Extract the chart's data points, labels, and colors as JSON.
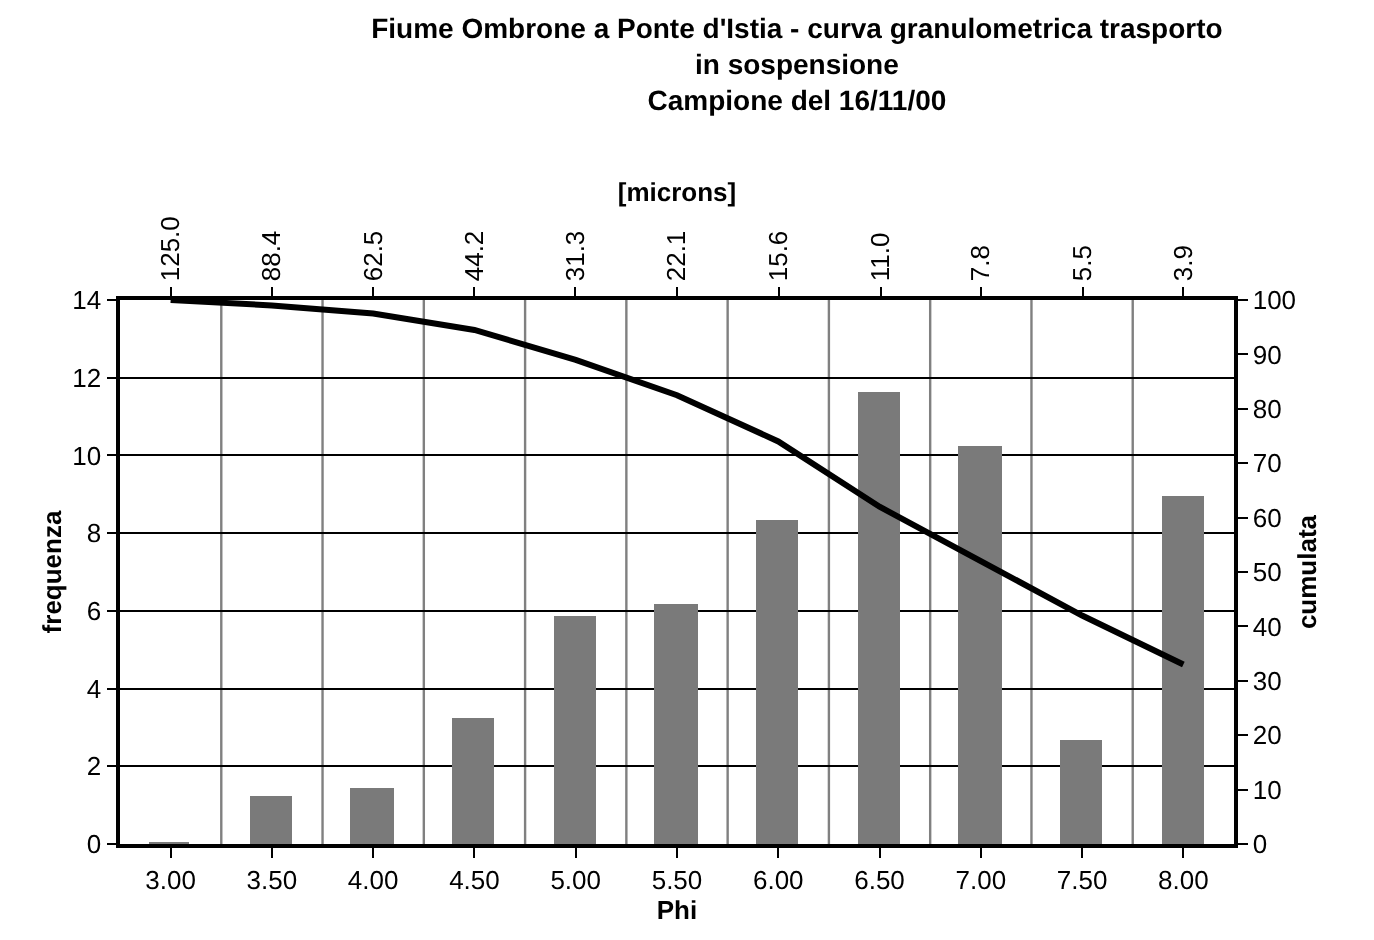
{
  "chart_data": {
    "type": "bar",
    "title": "Fiume Ombrone a Ponte d'Istia - curva granulometrica trasporto\nin sospensione\nCampione del 16/11/00",
    "xlabel": "Phi",
    "ylabel": "frequenza",
    "y2label": "cumulata",
    "x2label": "[microns]",
    "x": [
      3,
      3.5,
      4,
      4.5,
      5,
      5.5,
      6,
      6.5,
      7,
      7.5,
      8
    ],
    "series": [
      {
        "color": "#7a7a7a",
        "values": [
          0,
          1.2,
          1.4,
          3.2,
          5.8,
          6.1,
          8.3,
          11.6,
          10.2,
          2.6,
          8.9
        ]
      },
      {
        "type": "line",
        "axis": "y2",
        "color": "#000000",
        "values": [
          100,
          99,
          97.5,
          94.5,
          89,
          82.5,
          74,
          62,
          52,
          42,
          33
        ]
      }
    ],
    "xlim": [
      2.75,
      8.25
    ],
    "xticks": [
      {
        "value": 3,
        "label": "3.00"
      },
      {
        "value": 3.5,
        "label": "3.50"
      },
      {
        "value": 4,
        "label": "4.00"
      },
      {
        "value": 4.5,
        "label": "4.50"
      },
      {
        "value": 5,
        "label": "5.00"
      },
      {
        "value": 5.5,
        "label": "5.50"
      },
      {
        "value": 6,
        "label": "6.00"
      },
      {
        "value": 6.5,
        "label": "6.50"
      },
      {
        "value": 7,
        "label": "7.00"
      },
      {
        "value": 7.5,
        "label": "7.50"
      },
      {
        "value": 8,
        "label": "8.00"
      }
    ],
    "x2lim": [
      148.7,
      3.28
    ],
    "x2ticks": [
      {
        "value": 125,
        "label": "125.0"
      },
      88.4,
      62.5,
      44.2,
      31.3,
      22.1,
      15.6,
      {
        "value": 11,
        "label": "11.0"
      },
      7.8,
      5.5,
      3.9
    ],
    "log": "x2",
    "ylim": [
      0,
      14
    ],
    "yticks": [
      0,
      2,
      4,
      6,
      8,
      10,
      12,
      14
    ],
    "y2lim": [
      0,
      100
    ],
    "y2ticks": [
      0,
      10,
      20,
      30,
      40,
      50,
      60,
      70,
      80,
      90,
      100
    ],
    "grid": true,
    "marker": "none",
    "line_style": "solid"
  }
}
